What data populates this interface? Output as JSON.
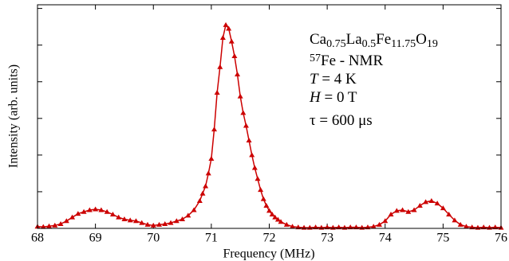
{
  "chart_data": {
    "type": "line",
    "xlabel": "Frequency (MHz)",
    "ylabel": "Intensity (arb. units)",
    "color": "#cc0000",
    "marker": "triangle",
    "xlim": [
      68,
      76
    ],
    "xticks": [
      68,
      69,
      70,
      71,
      72,
      73,
      74,
      75,
      76
    ],
    "ylim": [
      0,
      6.1
    ],
    "yticks": [
      0,
      1,
      2,
      3,
      4,
      5,
      6
    ],
    "ytick_labels": false,
    "annotations": [
      [
        {
          "text": "Ca"
        },
        {
          "text": "0.75",
          "style": "sub"
        },
        {
          "text": "La"
        },
        {
          "text": "0.5",
          "style": "sub"
        },
        {
          "text": "Fe"
        },
        {
          "text": "11.75",
          "style": "sub"
        },
        {
          "text": "O"
        },
        {
          "text": "19",
          "style": "sub"
        }
      ],
      [
        {
          "text": "57",
          "style": "sup"
        },
        {
          "text": "Fe - NMR"
        }
      ],
      [
        {
          "text": "T",
          "style": "italic"
        },
        {
          "text": " = 4 K"
        }
      ],
      [
        {
          "text": "H",
          "style": "italic"
        },
        {
          "text": " = 0 T"
        }
      ],
      [
        {
          "text": "τ = 600 μs"
        }
      ]
    ],
    "x": [
      68.0,
      68.1,
      68.2,
      68.3,
      68.4,
      68.5,
      68.6,
      68.7,
      68.8,
      68.9,
      69.0,
      69.1,
      69.2,
      69.3,
      69.4,
      69.5,
      69.6,
      69.7,
      69.8,
      69.9,
      70.0,
      70.1,
      70.2,
      70.3,
      70.4,
      70.5,
      70.6,
      70.7,
      70.8,
      70.85,
      70.9,
      70.95,
      71.0,
      71.05,
      71.1,
      71.15,
      71.2,
      71.25,
      71.3,
      71.35,
      71.4,
      71.45,
      71.5,
      71.55,
      71.6,
      71.65,
      71.7,
      71.75,
      71.8,
      71.85,
      71.9,
      71.95,
      72.0,
      72.05,
      72.1,
      72.15,
      72.2,
      72.3,
      72.4,
      72.5,
      72.6,
      72.7,
      72.8,
      72.9,
      73.0,
      73.1,
      73.2,
      73.3,
      73.4,
      73.5,
      73.6,
      73.7,
      73.8,
      73.9,
      74.0,
      74.1,
      74.2,
      74.3,
      74.4,
      74.5,
      74.6,
      74.7,
      74.8,
      74.9,
      75.0,
      75.1,
      75.2,
      75.3,
      75.4,
      75.5,
      75.6,
      75.7,
      75.8,
      75.9,
      76.0
    ],
    "values": [
      0.05,
      0.04,
      0.06,
      0.08,
      0.12,
      0.2,
      0.3,
      0.4,
      0.45,
      0.5,
      0.52,
      0.5,
      0.45,
      0.38,
      0.3,
      0.25,
      0.22,
      0.2,
      0.15,
      0.1,
      0.08,
      0.1,
      0.12,
      0.15,
      0.2,
      0.25,
      0.35,
      0.5,
      0.75,
      0.95,
      1.15,
      1.5,
      1.9,
      2.7,
      3.7,
      4.4,
      5.2,
      5.55,
      5.45,
      5.1,
      4.7,
      4.2,
      3.6,
      3.15,
      2.8,
      2.4,
      2.0,
      1.65,
      1.35,
      1.05,
      0.8,
      0.62,
      0.48,
      0.38,
      0.3,
      0.24,
      0.18,
      0.1,
      0.05,
      0.03,
      0.02,
      0.02,
      0.03,
      0.02,
      0.03,
      0.02,
      0.03,
      0.02,
      0.03,
      0.03,
      0.02,
      0.03,
      0.05,
      0.1,
      0.2,
      0.38,
      0.48,
      0.5,
      0.45,
      0.5,
      0.62,
      0.72,
      0.75,
      0.68,
      0.55,
      0.38,
      0.22,
      0.1,
      0.05,
      0.03,
      0.02,
      0.03,
      0.02,
      0.03,
      0.02
    ]
  }
}
